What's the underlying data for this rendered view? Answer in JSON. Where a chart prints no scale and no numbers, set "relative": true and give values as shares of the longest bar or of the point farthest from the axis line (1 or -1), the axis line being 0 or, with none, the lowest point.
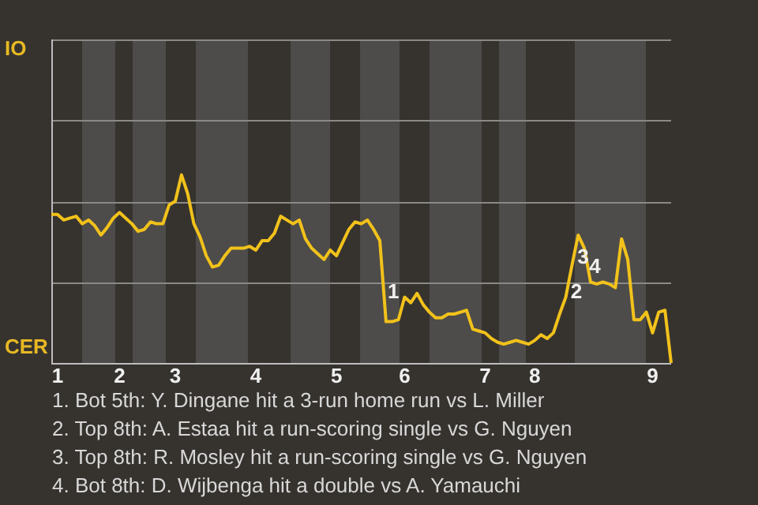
{
  "chart_data": {
    "type": "line",
    "relative": true,
    "categories": [
      null,
      "1",
      null,
      null,
      null,
      null,
      null,
      null,
      null,
      null,
      null,
      "2",
      null,
      null,
      null,
      null,
      null,
      null,
      null,
      null,
      "3",
      null,
      null,
      null,
      null,
      null,
      null,
      null,
      null,
      null,
      null,
      null,
      null,
      "4",
      null,
      null,
      null,
      null,
      null,
      null,
      null,
      null,
      null,
      null,
      null,
      null,
      "5",
      null,
      null,
      null,
      null,
      null,
      null,
      null,
      null,
      null,
      null,
      "6",
      null,
      null,
      null,
      null,
      null,
      null,
      null,
      null,
      null,
      null,
      null,
      null,
      "7",
      null,
      null,
      null,
      null,
      null,
      null,
      null,
      "8",
      null,
      null,
      null,
      null,
      null,
      null,
      null,
      null,
      null,
      null,
      null,
      null,
      null,
      null,
      null,
      null,
      null,
      null,
      "9",
      null,
      null,
      null
    ],
    "series": [
      {
        "color": "#f2c21b",
        "values": [
          0.79,
          0.79,
          0.76,
          0.77,
          0.78,
          0.74,
          0.76,
          0.73,
          0.68,
          0.72,
          0.77,
          0.8,
          0.77,
          0.74,
          0.7,
          0.71,
          0.75,
          0.74,
          0.74,
          0.84,
          0.86,
          1,
          0.9,
          0.74,
          0.67,
          0.57,
          0.51,
          0.52,
          0.57,
          0.61,
          0.61,
          0.61,
          0.62,
          0.6,
          0.65,
          0.65,
          0.69,
          0.78,
          0.76,
          0.74,
          0.76,
          0.66,
          0.61,
          0.58,
          0.55,
          0.6,
          0.57,
          0.64,
          0.71,
          0.75,
          0.74,
          0.76,
          0.71,
          0.65,
          0.22,
          0.22,
          0.23,
          0.35,
          0.32,
          0.37,
          0.31,
          0.27,
          0.24,
          0.24,
          0.26,
          0.26,
          0.27,
          0.28,
          0.18,
          0.17,
          0.16,
          0.13,
          0.11,
          0.1,
          0.11,
          0.12,
          0.11,
          0.1,
          0.12,
          0.15,
          0.13,
          0.16,
          0.26,
          0.35,
          0.52,
          0.68,
          0.61,
          0.43,
          0.42,
          0.43,
          0.42,
          0.4,
          0.66,
          0.55,
          0.23,
          0.23,
          0.27,
          0.16,
          0.27,
          0.28,
          0
        ]
      }
    ],
    "legend": false,
    "marker": "none",
    "annotations": [
      "IO",
      "CER",
      "1",
      "2",
      "3",
      "4",
      "1. Bot 5th: Y. Dingane hit a 3-run home run vs L. Miller",
      "2. Top 8th: A. Estaa hit a run-scoring single vs G. Nguyen",
      "3. Top 8th: R. Mosley hit a run-scoring single vs G. Nguyen",
      "4. Bot 8th: D. Wijbenga hit a double vs A. Yamauchi"
    ]
  }
}
